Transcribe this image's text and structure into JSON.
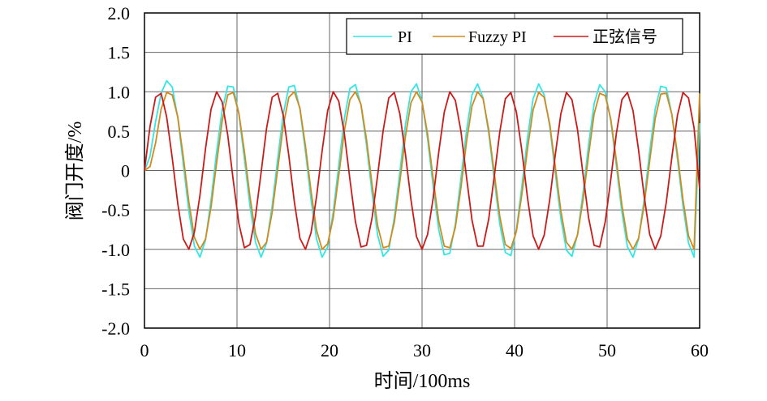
{
  "chart_data": {
    "type": "line",
    "title": "",
    "xlabel": "时间/100ms",
    "ylabel": "阀门开度/%",
    "xlim": [
      0,
      60
    ],
    "ylim": [
      -2.0,
      2.0
    ],
    "x_ticks": [
      "0",
      "10",
      "20",
      "30",
      "40",
      "50",
      "60"
    ],
    "x_tick_values": [
      0,
      10,
      20,
      30,
      40,
      50,
      60
    ],
    "y_ticks": [
      "2.0",
      "1.5",
      "1.0",
      "0.5",
      "0",
      "-0.5",
      "-1.0",
      "-1.5",
      "-2.0"
    ],
    "y_tick_values": [
      2.0,
      1.5,
      1.0,
      0.5,
      0,
      -0.5,
      -1.0,
      -1.5,
      -2.0
    ],
    "grid": true,
    "legend_position": "top-right",
    "series": [
      {
        "name": "PI",
        "color": "#33e6e6",
        "x": [
          0,
          0.6,
          1.2,
          1.8,
          2.4,
          3.0,
          3.6,
          4.2,
          4.8,
          5.4,
          6.0,
          6.6,
          7.2,
          7.8,
          8.4,
          9.0,
          9.6,
          10.2,
          10.8,
          11.4,
          12.0,
          12.6,
          13.2,
          13.8,
          14.4,
          15.0,
          15.6,
          16.2,
          16.8,
          17.4,
          18.0,
          18.6,
          19.2,
          19.8,
          20.4,
          21.0,
          21.6,
          22.2,
          22.8,
          23.4,
          24.0,
          24.6,
          25.2,
          25.8,
          26.4,
          27.0,
          27.6,
          28.2,
          28.8,
          29.4,
          30.0,
          30.6,
          31.2,
          31.8,
          32.4,
          33.0,
          33.6,
          34.2,
          34.8,
          35.4,
          36.0,
          36.6,
          37.2,
          37.8,
          38.4,
          39.0,
          39.6,
          40.2,
          40.8,
          41.4,
          42.0,
          42.6,
          43.2,
          43.8,
          44.4,
          45.0,
          45.6,
          46.2,
          46.8,
          47.4,
          48.0,
          48.6,
          49.2,
          49.8,
          50.4,
          51.0,
          51.6,
          52.2,
          52.8,
          53.4,
          54.0,
          54.6,
          55.2,
          55.8,
          56.4,
          57.0,
          57.6,
          58.2,
          58.8,
          59.4,
          60.0
        ],
        "values": [
          0.0,
          0.18,
          0.62,
          0.98,
          1.14,
          1.06,
          0.67,
          0.08,
          -0.52,
          -0.96,
          -1.1,
          -0.88,
          -0.37,
          0.24,
          0.77,
          1.07,
          1.06,
          0.72,
          0.15,
          -0.45,
          -0.91,
          -1.1,
          -0.92,
          -0.45,
          0.15,
          0.72,
          1.06,
          1.08,
          0.78,
          0.24,
          -0.37,
          -0.87,
          -1.1,
          -0.97,
          -0.53,
          0.07,
          0.66,
          1.04,
          1.09,
          0.83,
          0.32,
          -0.29,
          -0.82,
          -1.09,
          -1.01,
          -0.6,
          -0.02,
          0.58,
          1.0,
          1.1,
          0.88,
          0.4,
          -0.2,
          -0.75,
          -1.07,
          -1.05,
          -0.68,
          -0.1,
          0.5,
          0.96,
          1.1,
          0.92,
          0.48,
          -0.11,
          -0.68,
          -1.04,
          -1.08,
          -0.75,
          -0.19,
          0.42,
          0.91,
          1.1,
          0.96,
          0.56,
          -0.03,
          -0.61,
          -1.01,
          -1.09,
          -0.81,
          -0.28,
          0.33,
          0.85,
          1.09,
          1.0,
          0.63,
          0.06,
          -0.53,
          -0.97,
          -1.1,
          -0.87,
          -0.37,
          0.24,
          0.78,
          1.07,
          1.05,
          0.71,
          0.15,
          -0.45,
          -0.92,
          -1.1,
          0.6
        ]
      },
      {
        "name": "Fuzzy PI",
        "color": "#d48a1a",
        "x": [
          0,
          0.6,
          1.2,
          1.8,
          2.4,
          3.0,
          3.6,
          4.2,
          4.8,
          5.4,
          6.0,
          6.6,
          7.2,
          7.8,
          8.4,
          9.0,
          9.6,
          10.2,
          10.8,
          11.4,
          12.0,
          12.6,
          13.2,
          13.8,
          14.4,
          15.0,
          15.6,
          16.2,
          16.8,
          17.4,
          18.0,
          18.6,
          19.2,
          19.8,
          20.4,
          21.0,
          21.6,
          22.2,
          22.8,
          23.4,
          24.0,
          24.6,
          25.2,
          25.8,
          26.4,
          27.0,
          27.6,
          28.2,
          28.8,
          29.4,
          30.0,
          30.6,
          31.2,
          31.8,
          32.4,
          33.0,
          33.6,
          34.2,
          34.8,
          35.4,
          36.0,
          36.6,
          37.2,
          37.8,
          38.4,
          39.0,
          39.6,
          40.2,
          40.8,
          41.4,
          42.0,
          42.6,
          43.2,
          43.8,
          44.4,
          45.0,
          45.6,
          46.2,
          46.8,
          47.4,
          48.0,
          48.6,
          49.2,
          49.8,
          50.4,
          51.0,
          51.6,
          52.2,
          52.8,
          53.4,
          54.0,
          54.6,
          55.2,
          55.8,
          56.4,
          57.0,
          57.6,
          58.2,
          58.8,
          59.4,
          60.0
        ],
        "values": [
          0.0,
          0.05,
          0.35,
          0.78,
          0.99,
          0.96,
          0.68,
          0.17,
          -0.4,
          -0.85,
          -1.0,
          -0.87,
          -0.46,
          0.1,
          0.63,
          0.96,
          0.99,
          0.73,
          0.24,
          -0.33,
          -0.8,
          -1.0,
          -0.91,
          -0.53,
          0.02,
          0.57,
          0.93,
          1.0,
          0.79,
          0.31,
          -0.26,
          -0.76,
          -1.0,
          -0.93,
          -0.6,
          -0.06,
          0.5,
          0.9,
          1.0,
          0.84,
          0.39,
          -0.18,
          -0.7,
          -0.98,
          -0.96,
          -0.66,
          -0.14,
          0.43,
          0.86,
          1.0,
          0.87,
          0.46,
          -0.1,
          -0.64,
          -0.96,
          -0.98,
          -0.72,
          -0.22,
          0.36,
          0.82,
          1.0,
          0.91,
          0.52,
          -0.03,
          -0.58,
          -0.94,
          -0.99,
          -0.77,
          -0.29,
          0.28,
          0.77,
          0.99,
          0.93,
          0.59,
          0.05,
          -0.51,
          -0.91,
          -1.0,
          -0.82,
          -0.37,
          0.2,
          0.72,
          0.98,
          0.95,
          0.65,
          0.13,
          -0.44,
          -0.87,
          -1.0,
          -0.86,
          -0.44,
          0.12,
          0.66,
          0.97,
          0.98,
          0.71,
          0.21,
          -0.37,
          -0.83,
          -1.0,
          0.98
        ]
      },
      {
        "name": "正弦信号",
        "color": "#cc1a1a",
        "x": [
          0,
          0.6,
          1.2,
          1.8,
          2.4,
          3.0,
          3.6,
          4.2,
          4.8,
          5.4,
          6.0,
          6.6,
          7.2,
          7.8,
          8.4,
          9.0,
          9.6,
          10.2,
          10.8,
          11.4,
          12.0,
          12.6,
          13.2,
          13.8,
          14.4,
          15.0,
          15.6,
          16.2,
          16.8,
          17.4,
          18.0,
          18.6,
          19.2,
          19.8,
          20.4,
          21.0,
          21.6,
          22.2,
          22.8,
          23.4,
          24.0,
          24.6,
          25.2,
          25.8,
          26.4,
          27.0,
          27.6,
          28.2,
          28.8,
          29.4,
          30.0,
          30.6,
          31.2,
          31.8,
          32.4,
          33.0,
          33.6,
          34.2,
          34.8,
          35.4,
          36.0,
          36.6,
          37.2,
          37.8,
          38.4,
          39.0,
          39.6,
          40.2,
          40.8,
          41.4,
          42.0,
          42.6,
          43.2,
          43.8,
          44.4,
          45.0,
          45.6,
          46.2,
          46.8,
          47.4,
          48.0,
          48.6,
          49.2,
          49.8,
          50.4,
          51.0,
          51.6,
          52.2,
          52.8,
          53.4,
          54.0,
          54.6,
          55.2,
          55.8,
          56.4,
          57.0,
          57.6,
          58.2,
          58.8,
          59.4,
          60.0
        ],
        "values": [
          0.0,
          0.56,
          0.93,
          0.98,
          0.68,
          0.16,
          -0.42,
          -0.87,
          -1.0,
          -0.78,
          -0.31,
          0.28,
          0.78,
          1.0,
          0.87,
          0.45,
          -0.13,
          -0.67,
          -0.98,
          -0.94,
          -0.58,
          -0.03,
          0.54,
          0.93,
          0.98,
          0.7,
          0.19,
          -0.4,
          -0.86,
          -1.0,
          -0.79,
          -0.33,
          0.25,
          0.76,
          1.0,
          0.88,
          0.47,
          -0.11,
          -0.65,
          -0.97,
          -0.95,
          -0.6,
          -0.06,
          0.51,
          0.92,
          0.99,
          0.72,
          0.21,
          -0.37,
          -0.84,
          -1.0,
          -0.81,
          -0.35,
          0.23,
          0.74,
          1.0,
          0.89,
          0.5,
          -0.08,
          -0.63,
          -0.96,
          -0.96,
          -0.62,
          -0.08,
          0.49,
          0.91,
          0.99,
          0.74,
          0.24,
          -0.35,
          -0.83,
          -1.0,
          -0.82,
          -0.37,
          0.2,
          0.72,
          0.99,
          0.9,
          0.52,
          -0.05,
          -0.6,
          -0.95,
          -0.97,
          -0.65,
          -0.11,
          0.47,
          0.9,
          0.99,
          0.76,
          0.26,
          -0.32,
          -0.81,
          -1.0,
          -0.83,
          -0.4,
          0.17,
          0.7,
          0.99,
          0.92,
          0.54,
          -0.23
        ]
      }
    ]
  }
}
